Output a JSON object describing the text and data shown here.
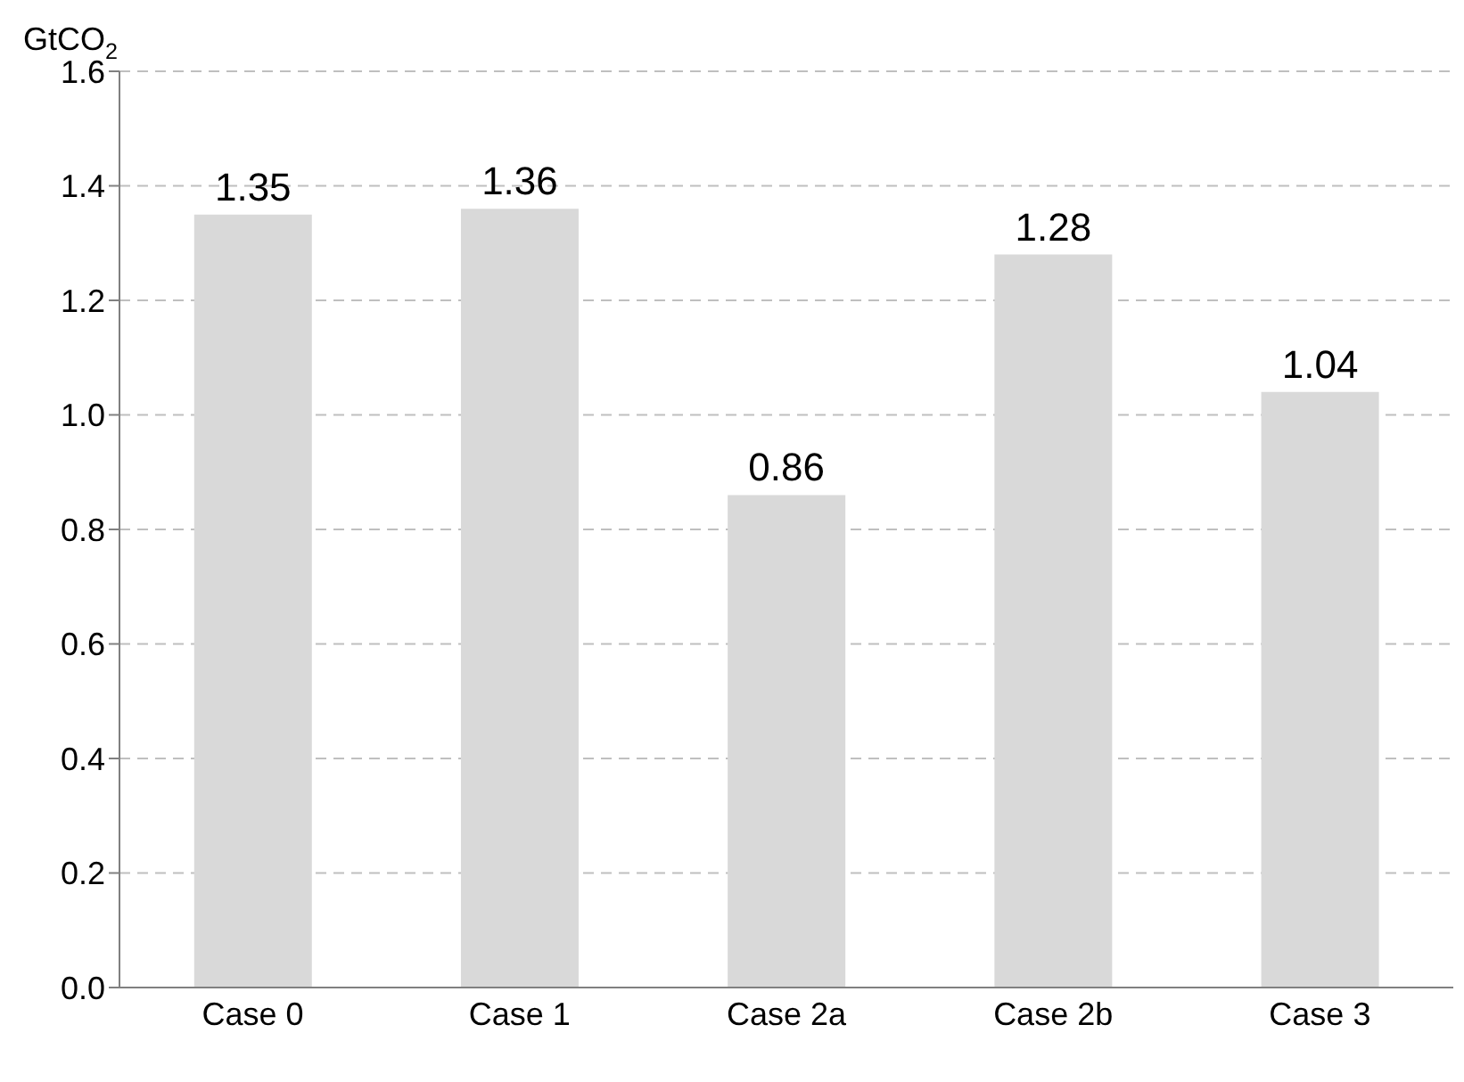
{
  "chart_data": {
    "type": "bar",
    "ylabel": "GtCO$_{2}$",
    "categories": [
      "Case 0",
      "Case 1",
      "Case 2a",
      "Case 2b",
      "Case 3"
    ],
    "values": [
      1.35,
      1.36,
      0.86,
      1.28,
      1.04
    ],
    "color": "#d9d9d9",
    "ylim": [
      0,
      1.6
    ],
    "yticks": [
      {
        "value": 0,
        "label": "0.0"
      },
      0.2,
      0.4,
      0.6,
      0.8,
      {
        "value": 1,
        "label": "1.0"
      },
      1.2,
      1.4,
      1.6
    ],
    "grid": "y",
    "data_labels": true
  }
}
